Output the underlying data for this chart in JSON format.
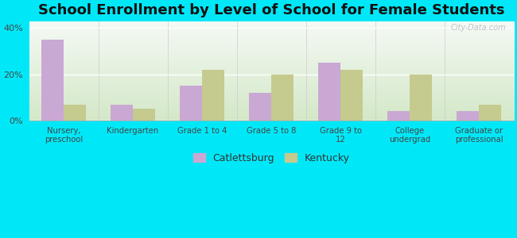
{
  "title": "School Enrollment by Level of School for Female Students",
  "categories": [
    "Nursery,\npreschool",
    "Kindergarten",
    "Grade 1 to 4",
    "Grade 5 to 8",
    "Grade 9 to\n12",
    "College\nundergrad",
    "Graduate or\nprofessional"
  ],
  "catlettsburg": [
    35,
    7,
    15,
    12,
    25,
    4,
    4
  ],
  "kentucky": [
    7,
    5,
    22,
    20,
    22,
    20,
    7
  ],
  "catlettsburg_color": "#c9a8d4",
  "kentucky_color": "#c5ca8e",
  "background_outer": "#00e8f8",
  "background_inner_top": "#f5faf5",
  "background_inner_bottom": "#d4e8c8",
  "yticks": [
    0,
    20,
    40
  ],
  "ylim": [
    0,
    43
  ],
  "legend_labels": [
    "Catlettsburg",
    "Kentucky"
  ],
  "title_fontsize": 13,
  "watermark": "City-Data.com"
}
